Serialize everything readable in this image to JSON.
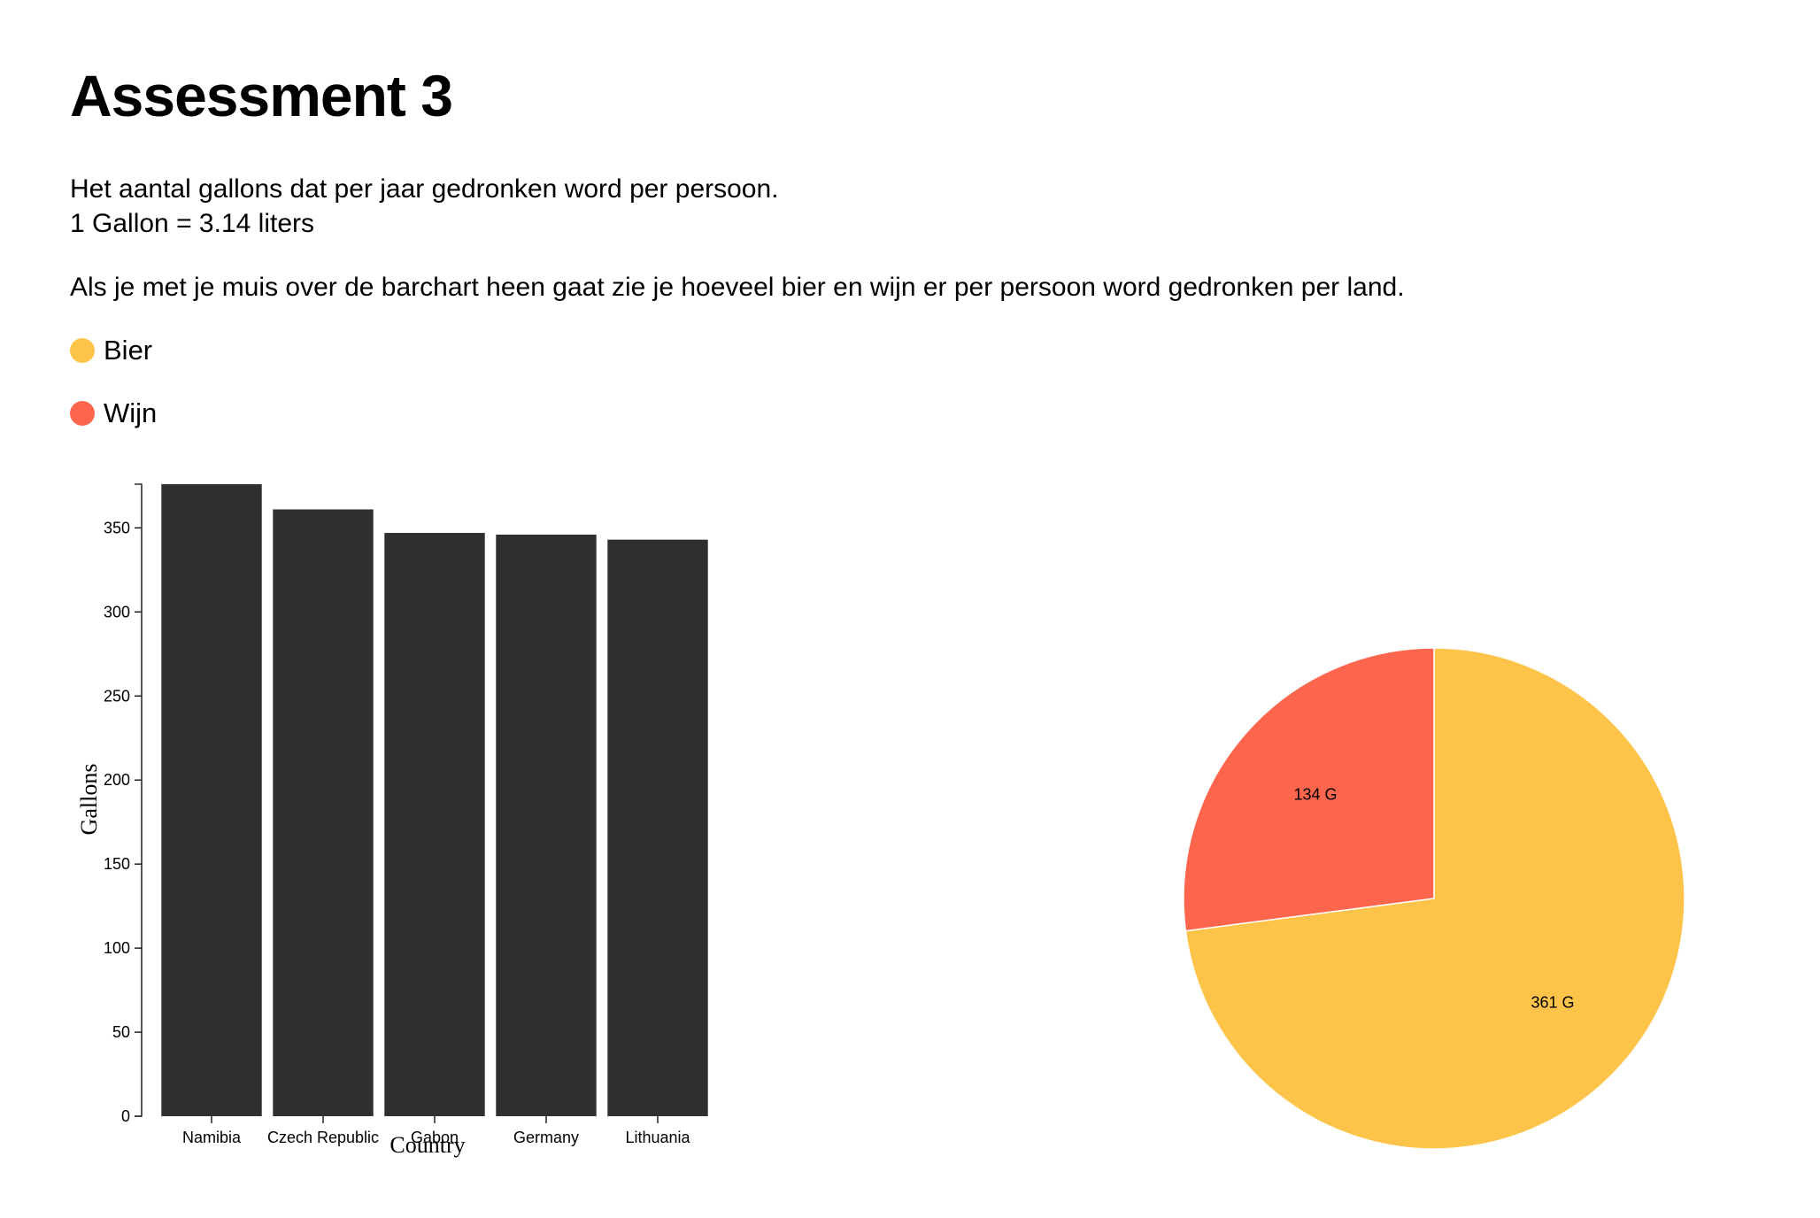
{
  "page": {
    "title": "Assessment 3",
    "intro_line1": "Het aantal gallons dat per jaar gedronken word per persoon.",
    "intro_line2": "1 Gallon = 3.14 liters",
    "hover_hint": "Als je met je muis over de barchart heen gaat zie je hoeveel bier en wijn er per persoon word gedronken per land."
  },
  "legend": [
    {
      "label": "Bier",
      "color": "#fec44a"
    },
    {
      "label": "Wijn",
      "color": "#fd654d"
    }
  ],
  "chart_data": [
    {
      "type": "bar",
      "categories": [
        "Namibia",
        "Czech Republic",
        "Gabon",
        "Germany",
        "Lithuania"
      ],
      "values": [
        376,
        361,
        347,
        346,
        343
      ],
      "xlabel": "Country",
      "ylabel": "Gallons",
      "ylim": [
        0,
        376
      ],
      "yticks": [
        0,
        50,
        100,
        150,
        200,
        250,
        300,
        350
      ],
      "bar_color": "#2f2f2f"
    },
    {
      "type": "pie",
      "categories": [
        "Wijn",
        "Bier"
      ],
      "values": [
        134,
        361
      ],
      "labels": [
        "134 G",
        "361 G"
      ],
      "colors": [
        "#fd654d",
        "#fec44a"
      ]
    }
  ]
}
